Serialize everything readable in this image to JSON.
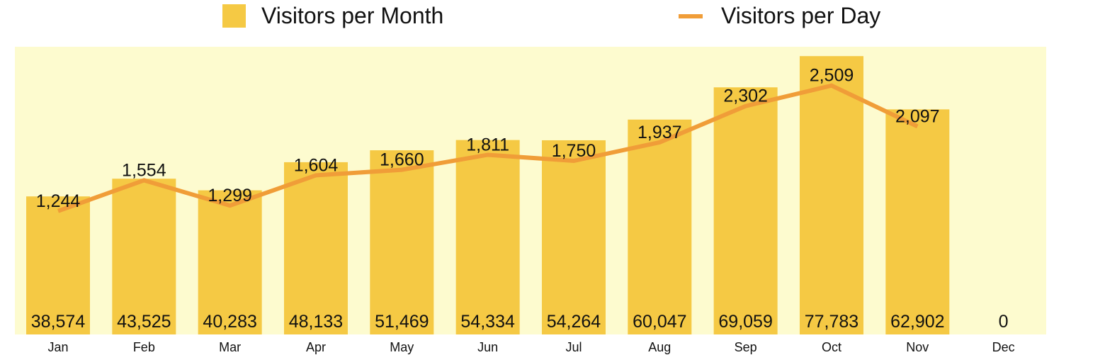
{
  "legend": {
    "bar_label": "Visitors per Month",
    "line_label": "Visitors per Day"
  },
  "colors": {
    "plot_bg": "#fdfbcf",
    "bar": "#f5c944",
    "line": "#f09d38",
    "text": "#111111"
  },
  "chart_data": {
    "type": "bar",
    "title": "",
    "xlabel": "",
    "ylabel": "",
    "categories": [
      "Jan",
      "Feb",
      "Mar",
      "Apr",
      "May",
      "Jun",
      "Jul",
      "Aug",
      "Sep",
      "Oct",
      "Nov",
      "Dec"
    ],
    "series": [
      {
        "name": "Visitors per Month",
        "type": "bar",
        "values": [
          38574,
          43525,
          40283,
          48133,
          51469,
          54334,
          54264,
          60047,
          69059,
          77783,
          62902,
          0
        ],
        "labels": [
          "38,574",
          "43,525",
          "40,283",
          "48,133",
          "51,469",
          "54,334",
          "54,264",
          "60,047",
          "69,059",
          "77,783",
          "62,902",
          "0"
        ]
      },
      {
        "name": "Visitors per Day",
        "type": "line",
        "values": [
          1244,
          1554,
          1299,
          1604,
          1660,
          1811,
          1750,
          1937,
          2302,
          2509,
          2097,
          null
        ],
        "labels": [
          "1,244",
          "1,554",
          "1,299",
          "1,604",
          "1,660",
          "1,811",
          "1,750",
          "1,937",
          "2,302",
          "2,509",
          "2,097",
          ""
        ]
      }
    ],
    "grid": false,
    "legend_position": "top"
  }
}
